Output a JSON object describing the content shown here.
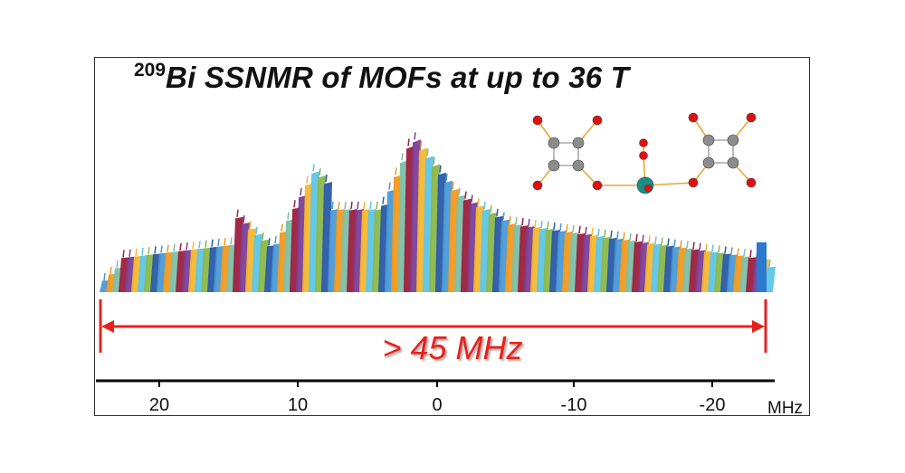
{
  "title_iso": "209",
  "title_text": "Bi SSNMR of MOFs at up to 36 T",
  "range_label": "> 45 MHz",
  "axis": {
    "unit": "MHz",
    "ticks": [
      "20",
      "10",
      "0",
      "-10",
      "-20"
    ]
  },
  "colors": {
    "arrow": "#e8221b",
    "spikelets": [
      "#4a9ad6",
      "#f29a1f",
      "#7cc0a8",
      "#9c1f3f",
      "#7b3f98",
      "#f5b82e",
      "#5ec5e8",
      "#8cb84a",
      "#2a5aa8"
    ]
  }
}
